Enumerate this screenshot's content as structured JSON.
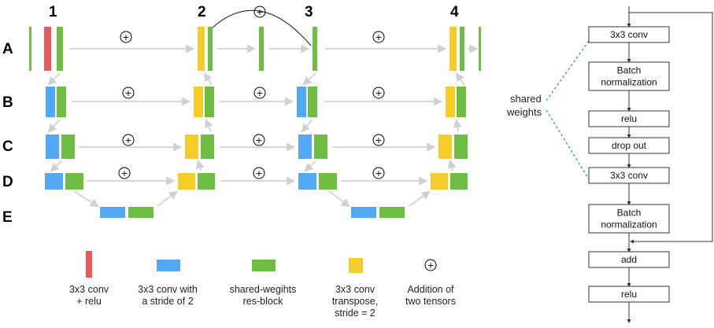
{
  "columns": [
    "1",
    "2",
    "3",
    "4"
  ],
  "rows": [
    "A",
    "B",
    "C",
    "D",
    "E"
  ],
  "plus_symbol": "+",
  "colors": {
    "conv_relu": "#e65a5a",
    "conv_stride2": "#52a8f2",
    "res_block": "#6fbe44",
    "transpose": "#f5cd2a",
    "arrow": "#d8d8d8",
    "dashed": "#3a8fd9"
  },
  "legend": [
    {
      "color_key": "conv_relu",
      "lines": [
        "3x3 conv",
        "+ relu"
      ]
    },
    {
      "color_key": "conv_stride2",
      "lines": [
        "3x3 conv with",
        "a stride of 2"
      ]
    },
    {
      "color_key": "res_block",
      "lines": [
        "shared-wegihts",
        "res-block"
      ]
    },
    {
      "color_key": "transpose",
      "lines": [
        "3x3 conv",
        "transpose,",
        "stride = 2"
      ]
    },
    {
      "symbol": "plus",
      "lines": [
        "Addition of",
        "two tensors"
      ]
    }
  ],
  "shared_weights": [
    "shared",
    "weights"
  ],
  "flow": {
    "steps": [
      [
        "3x3 conv"
      ],
      [
        "Batch",
        "normalization"
      ],
      [
        "relu"
      ],
      [
        "drop out"
      ],
      [
        "3x3 conv"
      ],
      [
        "Batch",
        "normalization"
      ],
      [
        "add"
      ],
      [
        "relu"
      ]
    ]
  }
}
